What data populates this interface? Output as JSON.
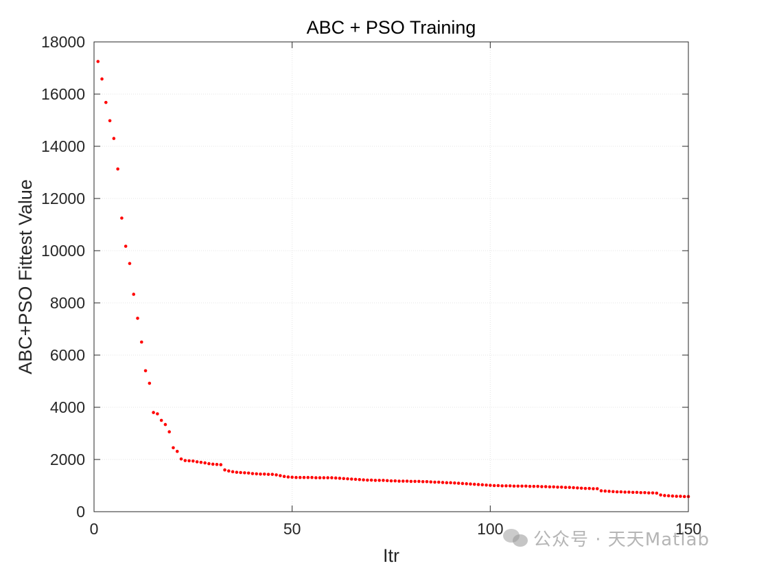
{
  "chart_data": {
    "type": "scatter",
    "title": "ABC + PSO Training",
    "xlabel": "Itr",
    "ylabel": "ABC+PSO Fittest Value",
    "xlim": [
      0,
      150
    ],
    "ylim": [
      0,
      18000
    ],
    "xticks": [
      0,
      50,
      100,
      150
    ],
    "yticks": [
      0,
      2000,
      4000,
      6000,
      8000,
      10000,
      12000,
      14000,
      16000,
      18000
    ],
    "grid": true,
    "marker_color": "#ff0000",
    "x": [
      1,
      2,
      3,
      4,
      5,
      6,
      7,
      8,
      9,
      10,
      11,
      12,
      13,
      14,
      15,
      16,
      17,
      18,
      19,
      20,
      21,
      22,
      23,
      24,
      25,
      26,
      27,
      28,
      29,
      30,
      31,
      32,
      33,
      34,
      35,
      36,
      37,
      38,
      39,
      40,
      41,
      42,
      43,
      44,
      45,
      46,
      47,
      48,
      49,
      50,
      51,
      52,
      53,
      54,
      55,
      56,
      57,
      58,
      59,
      60,
      61,
      62,
      63,
      64,
      65,
      66,
      67,
      68,
      69,
      70,
      71,
      72,
      73,
      74,
      75,
      76,
      77,
      78,
      79,
      80,
      81,
      82,
      83,
      84,
      85,
      86,
      87,
      88,
      89,
      90,
      91,
      92,
      93,
      94,
      95,
      96,
      97,
      98,
      99,
      100,
      101,
      102,
      103,
      104,
      105,
      106,
      107,
      108,
      109,
      110,
      111,
      112,
      113,
      114,
      115,
      116,
      117,
      118,
      119,
      120,
      121,
      122,
      123,
      124,
      125,
      126,
      127,
      128,
      129,
      130,
      131,
      132,
      133,
      134,
      135,
      136,
      137,
      138,
      139,
      140,
      141,
      142,
      143,
      144,
      145,
      146,
      147,
      148,
      149,
      150
    ],
    "y": [
      17250,
      16580,
      15680,
      14980,
      14300,
      13130,
      11250,
      10170,
      9510,
      8330,
      7410,
      6500,
      5400,
      4920,
      3800,
      3750,
      3500,
      3340,
      3060,
      2450,
      2310,
      2020,
      1960,
      1950,
      1940,
      1910,
      1890,
      1870,
      1840,
      1820,
      1810,
      1800,
      1600,
      1560,
      1530,
      1510,
      1500,
      1490,
      1480,
      1460,
      1450,
      1440,
      1440,
      1430,
      1430,
      1410,
      1380,
      1350,
      1330,
      1320,
      1310,
      1310,
      1310,
      1310,
      1310,
      1300,
      1300,
      1300,
      1300,
      1300,
      1290,
      1280,
      1270,
      1260,
      1250,
      1240,
      1230,
      1220,
      1210,
      1210,
      1200,
      1200,
      1200,
      1190,
      1180,
      1180,
      1170,
      1170,
      1170,
      1160,
      1160,
      1160,
      1150,
      1150,
      1140,
      1130,
      1130,
      1120,
      1110,
      1110,
      1100,
      1090,
      1080,
      1070,
      1060,
      1050,
      1040,
      1030,
      1020,
      1010,
      1000,
      1000,
      990,
      990,
      990,
      980,
      980,
      980,
      980,
      970,
      970,
      970,
      960,
      960,
      950,
      950,
      940,
      940,
      930,
      930,
      920,
      910,
      900,
      890,
      890,
      880,
      880,
      800,
      790,
      780,
      770,
      760,
      760,
      750,
      750,
      740,
      740,
      730,
      730,
      720,
      720,
      710,
      640,
      620,
      610,
      600,
      590,
      590,
      580,
      580
    ]
  },
  "watermark": {
    "text": "公众号 · 天天Matlab",
    "icon": "wechat-icon"
  }
}
